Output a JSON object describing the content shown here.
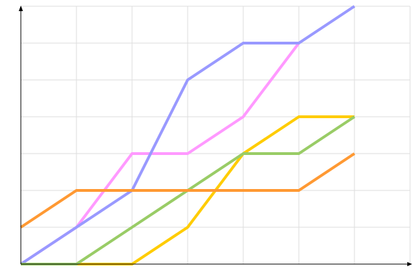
{
  "chart_data": {
    "type": "line",
    "title": "",
    "xlabel": "",
    "ylabel": "",
    "x": [
      0,
      1,
      2,
      3,
      4,
      5,
      6
    ],
    "xlim": [
      0,
      7
    ],
    "ylim": [
      0,
      7
    ],
    "grid": true,
    "tick_labels_shown": false,
    "series": [
      {
        "color": "#ff99ff",
        "values": [
          0,
          1,
          3,
          3,
          4,
          6,
          null
        ]
      },
      {
        "color": "#ffcc00",
        "values": [
          0,
          0,
          0,
          1,
          3,
          4,
          4
        ]
      },
      {
        "color": "#9999ff",
        "values": [
          0,
          1,
          2,
          5,
          6,
          6,
          7
        ]
      },
      {
        "color": "#99cc66",
        "values": [
          0,
          0,
          1,
          2,
          3,
          3,
          4
        ]
      },
      {
        "color": "#ff9933",
        "values": [
          1,
          2,
          2,
          2,
          2,
          2,
          3
        ]
      }
    ]
  }
}
